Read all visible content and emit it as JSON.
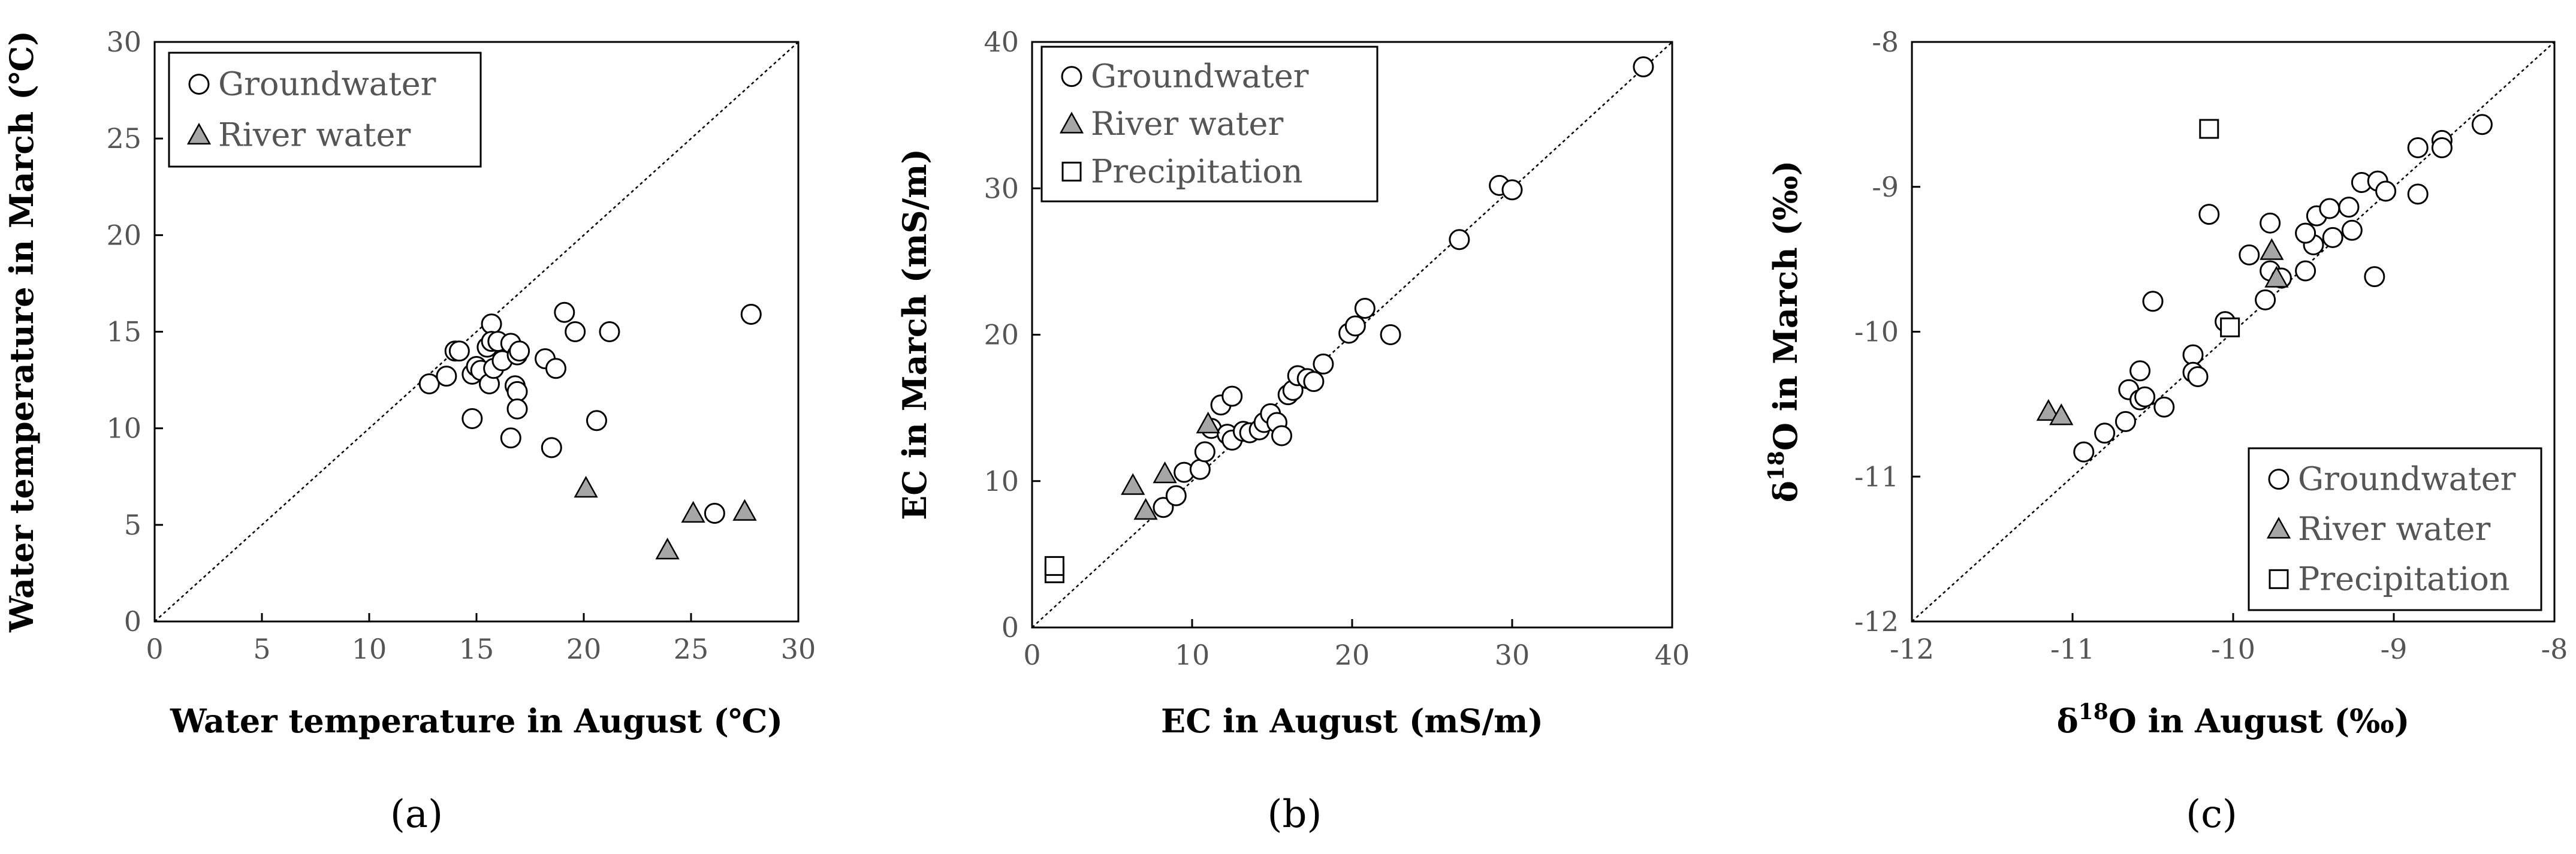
{
  "chart_data": [
    {
      "type": "scatter",
      "panel_label": "(a)",
      "xlabel": "Water temperature in August (℃)",
      "ylabel": "Water temperature in March (℃)",
      "xlim": [
        0,
        30
      ],
      "ylim": [
        0,
        30
      ],
      "xticks": [
        "0",
        "5",
        "10",
        "15",
        "20",
        "25",
        "30"
      ],
      "yticks": [
        "0",
        "5",
        "10",
        "15",
        "20",
        "25",
        "30"
      ],
      "legend_position": "top-left",
      "reference_line": "1:1",
      "series": [
        {
          "name": "Groundwater",
          "marker": "circle",
          "points": [
            [
              12.8,
              12.3
            ],
            [
              13.6,
              12.7
            ],
            [
              14.0,
              14.0
            ],
            [
              14.2,
              14.0
            ],
            [
              14.8,
              12.8
            ],
            [
              15.0,
              13.2
            ],
            [
              15.2,
              13.0
            ],
            [
              15.5,
              14.2
            ],
            [
              15.7,
              15.4
            ],
            [
              15.7,
              14.5
            ],
            [
              16.0,
              14.5
            ],
            [
              15.6,
              12.3
            ],
            [
              15.8,
              13.1
            ],
            [
              16.2,
              13.5
            ],
            [
              16.6,
              14.4
            ],
            [
              16.8,
              12.2
            ],
            [
              16.9,
              13.8
            ],
            [
              17.0,
              14.0
            ],
            [
              16.9,
              11.9
            ],
            [
              16.9,
              11.0
            ],
            [
              16.6,
              9.5
            ],
            [
              14.8,
              10.5
            ],
            [
              18.2,
              13.6
            ],
            [
              18.7,
              13.1
            ],
            [
              19.1,
              16.0
            ],
            [
              19.6,
              15.0
            ],
            [
              21.2,
              15.0
            ],
            [
              20.6,
              10.4
            ],
            [
              18.5,
              9.0
            ],
            [
              26.1,
              5.6
            ],
            [
              27.8,
              15.9
            ]
          ]
        },
        {
          "name": "River water",
          "marker": "triangle",
          "points": [
            [
              20.1,
              6.9
            ],
            [
              23.9,
              3.7
            ],
            [
              25.1,
              5.6
            ],
            [
              27.5,
              5.7
            ]
          ]
        }
      ]
    },
    {
      "type": "scatter",
      "panel_label": "(b)",
      "xlabel": "EC in August (mS/m)",
      "ylabel": "EC in March (mS/m)",
      "xlim": [
        0,
        40
      ],
      "ylim": [
        0,
        40
      ],
      "xticks": [
        "0",
        "10",
        "20",
        "30",
        "40"
      ],
      "yticks": [
        "0",
        "10",
        "20",
        "30",
        "40"
      ],
      "legend_position": "top-left",
      "reference_line": "1:1",
      "series": [
        {
          "name": "Groundwater",
          "marker": "circle",
          "points": [
            [
              8.2,
              8.2
            ],
            [
              9.0,
              9.0
            ],
            [
              9.5,
              10.6
            ],
            [
              10.5,
              10.8
            ],
            [
              10.8,
              12.0
            ],
            [
              11.2,
              13.6
            ],
            [
              11.8,
              15.2
            ],
            [
              12.5,
              15.8
            ],
            [
              12.2,
              13.2
            ],
            [
              12.5,
              12.8
            ],
            [
              13.2,
              13.4
            ],
            [
              13.6,
              13.3
            ],
            [
              14.2,
              13.5
            ],
            [
              14.5,
              14.0
            ],
            [
              14.9,
              14.6
            ],
            [
              15.3,
              14.0
            ],
            [
              15.6,
              13.1
            ],
            [
              16.0,
              15.9
            ],
            [
              16.3,
              16.2
            ],
            [
              16.6,
              17.2
            ],
            [
              17.2,
              17.0
            ],
            [
              17.6,
              16.8
            ],
            [
              18.2,
              18.0
            ],
            [
              19.8,
              20.1
            ],
            [
              20.2,
              20.6
            ],
            [
              20.8,
              21.8
            ],
            [
              22.4,
              20.0
            ],
            [
              26.7,
              26.5
            ],
            [
              29.2,
              30.2
            ],
            [
              30.0,
              29.9
            ],
            [
              38.2,
              38.3
            ]
          ]
        },
        {
          "name": "River water",
          "marker": "triangle",
          "points": [
            [
              6.3,
              9.7
            ],
            [
              7.1,
              8.0
            ],
            [
              8.3,
              10.5
            ],
            [
              11.0,
              13.9
            ]
          ]
        },
        {
          "name": "Precipitation",
          "marker": "square",
          "points": [
            [
              1.4,
              3.7
            ],
            [
              1.4,
              4.2
            ]
          ]
        }
      ]
    },
    {
      "type": "scatter",
      "panel_label": "(c)",
      "xlabel": "δ18O in August (‰)",
      "ylabel": "δ18O in March (‰)",
      "label_superscript": "18",
      "label_prefix": "δ",
      "xlabel_suffix": "O in August (‰)",
      "ylabel_suffix": "O in March (‰)",
      "xlim": [
        -12,
        -8
      ],
      "ylim": [
        -12,
        -8
      ],
      "xticks": [
        "-12",
        "-11",
        "-10",
        "-9",
        "-8"
      ],
      "yticks": [
        "-12",
        "-11",
        "-10",
        "-9",
        "-8"
      ],
      "legend_position": "bottom-right",
      "reference_line": "1:1",
      "series": [
        {
          "name": "Groundwater",
          "marker": "circle",
          "points": [
            [
              -10.93,
              -10.83
            ],
            [
              -10.8,
              -10.7
            ],
            [
              -10.67,
              -10.62
            ],
            [
              -10.65,
              -10.4
            ],
            [
              -10.58,
              -10.47
            ],
            [
              -10.55,
              -10.45
            ],
            [
              -10.58,
              -10.27
            ],
            [
              -10.43,
              -10.52
            ],
            [
              -10.25,
              -10.16
            ],
            [
              -10.25,
              -10.28
            ],
            [
              -10.22,
              -10.31
            ],
            [
              -10.05,
              -9.93
            ],
            [
              -10.5,
              -9.79
            ],
            [
              -10.15,
              -9.19
            ],
            [
              -9.9,
              -9.47
            ],
            [
              -9.8,
              -9.78
            ],
            [
              -9.77,
              -9.58
            ],
            [
              -9.7,
              -9.63
            ],
            [
              -9.77,
              -9.25
            ],
            [
              -9.55,
              -9.58
            ],
            [
              -9.5,
              -9.4
            ],
            [
              -9.48,
              -9.2
            ],
            [
              -9.55,
              -9.32
            ],
            [
              -9.4,
              -9.15
            ],
            [
              -9.38,
              -9.35
            ],
            [
              -9.28,
              -9.14
            ],
            [
              -9.26,
              -9.3
            ],
            [
              -9.2,
              -8.97
            ],
            [
              -9.1,
              -8.96
            ],
            [
              -9.05,
              -9.03
            ],
            [
              -9.12,
              -9.62
            ],
            [
              -8.85,
              -9.05
            ],
            [
              -8.85,
              -8.73
            ],
            [
              -8.7,
              -8.68
            ],
            [
              -8.7,
              -8.73
            ],
            [
              -8.45,
              -8.57
            ]
          ]
        },
        {
          "name": "River water",
          "marker": "triangle",
          "points": [
            [
              -11.15,
              -10.55
            ],
            [
              -11.07,
              -10.58
            ],
            [
              -9.76,
              -9.44
            ],
            [
              -9.73,
              -9.63
            ]
          ]
        },
        {
          "name": "Precipitation",
          "marker": "square",
          "points": [
            [
              -10.15,
              -8.6
            ],
            [
              -10.02,
              -9.97
            ]
          ]
        }
      ]
    }
  ]
}
